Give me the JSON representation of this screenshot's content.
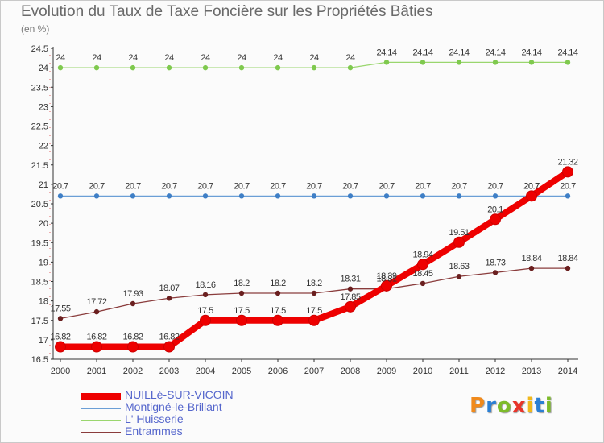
{
  "chart_data": {
    "type": "line",
    "title": "Evolution du Taux de Taxe Foncière sur les Propriétés Bâties",
    "unit_label": "(en %)",
    "x": [
      "2000",
      "2001",
      "2002",
      "2003",
      "2004",
      "2005",
      "2006",
      "2007",
      "2008",
      "2009",
      "2010",
      "2011",
      "2012",
      "2013",
      "2014"
    ],
    "ylim": [
      16.5,
      24.5
    ],
    "yticks": [
      16.5,
      17,
      17.5,
      18,
      18.5,
      19,
      19.5,
      20,
      20.5,
      21,
      21.5,
      22,
      22.5,
      23,
      23.5,
      24,
      24.5
    ],
    "grid": false,
    "series": [
      {
        "name": "NUILLé-SUR-VICOIN",
        "color": "#ee0000",
        "marker_color": "#ee0000",
        "style": "thick",
        "values": [
          16.82,
          16.82,
          16.82,
          16.82,
          17.5,
          17.5,
          17.5,
          17.5,
          17.85,
          18.39,
          18.94,
          19.51,
          20.1,
          20.7,
          21.32
        ],
        "labels": [
          "16.82",
          "16.82",
          "16.82",
          "16.82",
          "17.5",
          "17.5",
          "17.5",
          "17.5",
          "17.85",
          "18.39",
          "18.94",
          "19.51",
          "20.1",
          "20.7",
          "21.32"
        ]
      },
      {
        "name": "Montigné-le-Brillant",
        "color": "#6b9fd6",
        "marker_color": "#3f7fc6",
        "style": "thin",
        "values": [
          20.7,
          20.7,
          20.7,
          20.7,
          20.7,
          20.7,
          20.7,
          20.7,
          20.7,
          20.7,
          20.7,
          20.7,
          20.7,
          20.7,
          20.7
        ],
        "labels": [
          "20.7",
          "20.7",
          "20.7",
          "20.7",
          "20.7",
          "20.7",
          "20.7",
          "20.7",
          "20.7",
          "20.7",
          "20.7",
          "20.7",
          "20.7",
          "20.7",
          "20.7"
        ]
      },
      {
        "name": "L' Huisserie",
        "color": "#9ad66e",
        "marker_color": "#7fc94e",
        "style": "thin",
        "values": [
          24,
          24,
          24,
          24,
          24,
          24,
          24,
          24,
          24,
          24.14,
          24.14,
          24.14,
          24.14,
          24.14,
          24.14
        ],
        "labels": [
          "24",
          "24",
          "24",
          "24",
          "24",
          "24",
          "24",
          "24",
          "24",
          "24.14",
          "24.14",
          "24.14",
          "24.14",
          "24.14",
          "24.14"
        ]
      },
      {
        "name": "Entrammes",
        "color": "#8a3c3c",
        "marker_color": "#6a1f1f",
        "style": "thin",
        "values": [
          17.55,
          17.72,
          17.93,
          18.07,
          18.16,
          18.2,
          18.2,
          18.2,
          18.31,
          18.31,
          18.45,
          18.63,
          18.73,
          18.84,
          18.84
        ],
        "labels": [
          "17.55",
          "17.72",
          "17.93",
          "18.07",
          "18.16",
          "18.2",
          "18.2",
          "18.2",
          "18.31",
          "18.31",
          "18.45",
          "18.63",
          "18.73",
          "18.84",
          "18.84"
        ]
      }
    ],
    "legend_position": "bottom-left"
  },
  "brand": {
    "text": "Proxiti",
    "letter_colors": [
      "#f08a1c",
      "#2a7fd4",
      "#7dbb2a",
      "#e8342a",
      "#f0b81c",
      "#2a7fd4",
      "#7dbb2a"
    ]
  }
}
